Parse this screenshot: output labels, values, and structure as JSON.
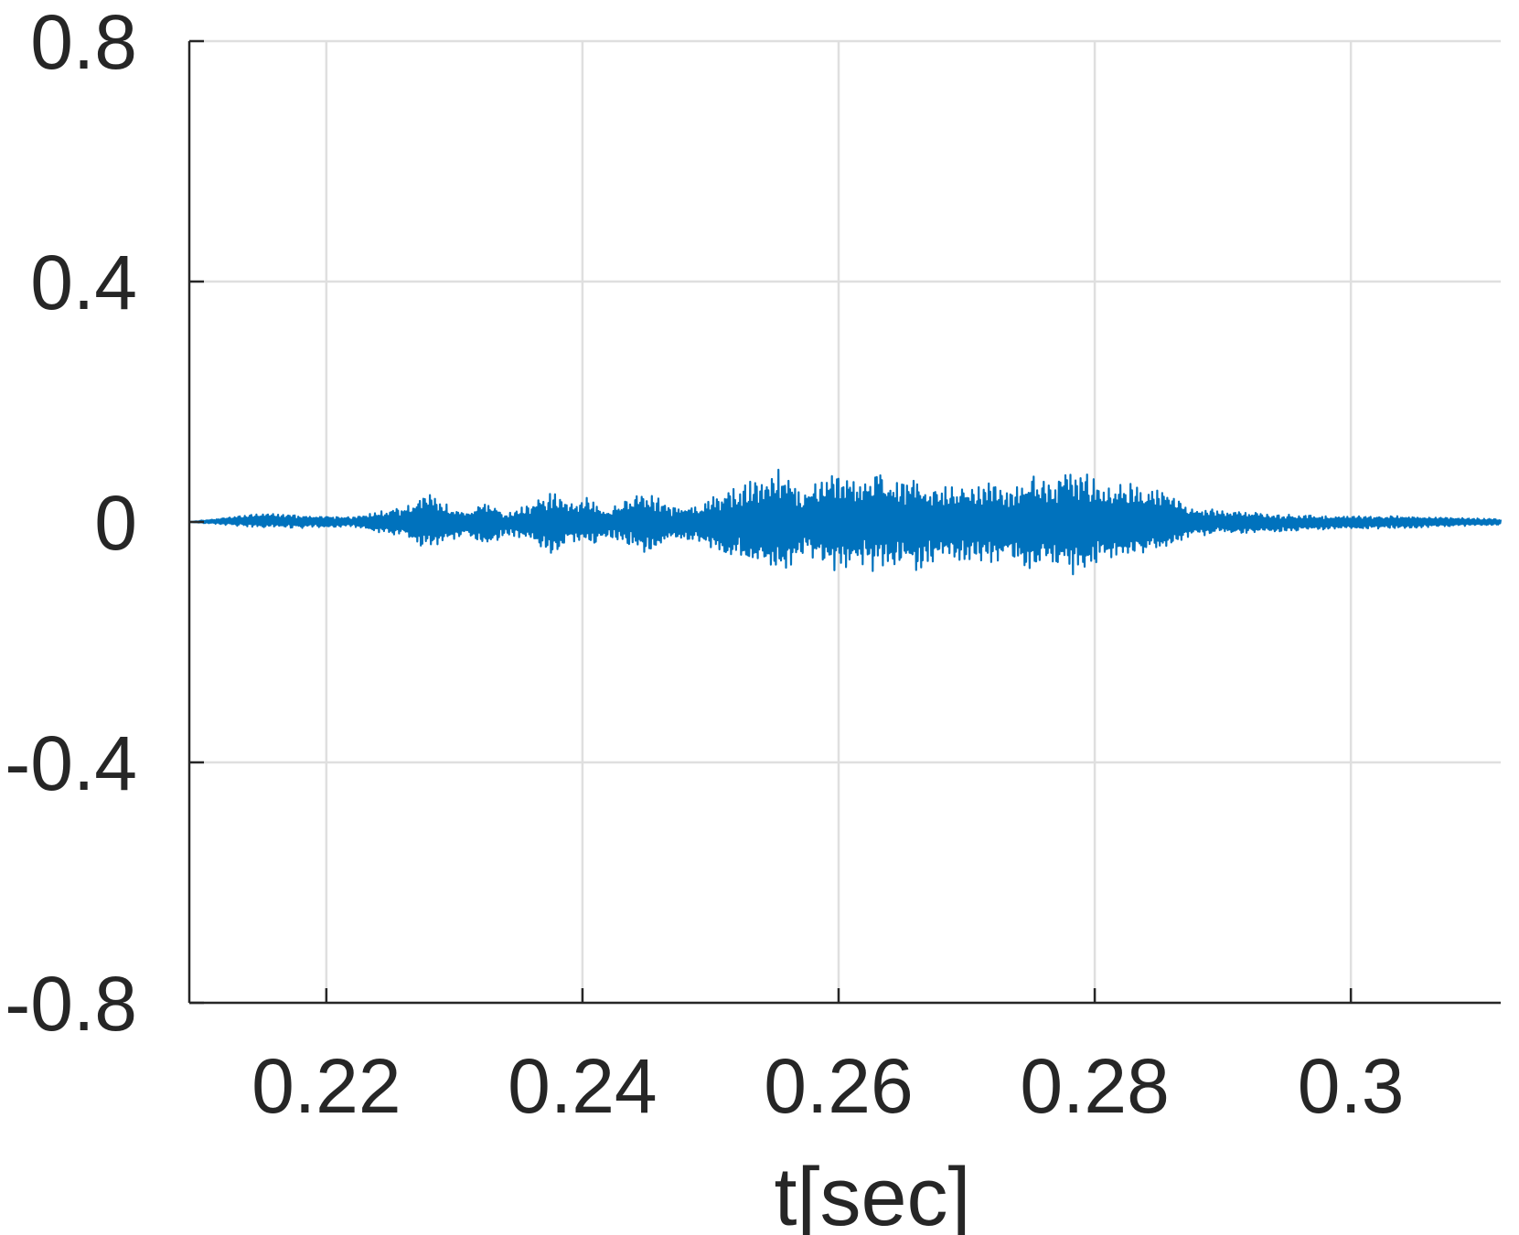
{
  "chart_data": {
    "type": "line",
    "title": "",
    "xlabel": "t[sec]",
    "ylabel": "",
    "xlim": [
      0.2093,
      0.3117
    ],
    "ylim": [
      -0.8,
      0.8
    ],
    "xticks": [
      0.22,
      0.24,
      0.26,
      0.28,
      0.3
    ],
    "xtick_labels": [
      "0.22",
      "0.24",
      "0.26",
      "0.28",
      "0.3"
    ],
    "yticks": [
      -0.8,
      -0.4,
      0,
      0.4,
      0.8
    ],
    "ytick_labels": [
      "-0.8",
      "-0.4",
      "0",
      "0.4",
      "0.8"
    ],
    "grid": true,
    "line_color": "#0072bd",
    "envelope": {
      "t": [
        0.2093,
        0.215,
        0.219,
        0.222,
        0.2255,
        0.2265,
        0.228,
        0.2295,
        0.231,
        0.2325,
        0.234,
        0.236,
        0.2375,
        0.239,
        0.2405,
        0.242,
        0.2435,
        0.245,
        0.247,
        0.249,
        0.251,
        0.2525,
        0.254,
        0.2555,
        0.257,
        0.2585,
        0.26,
        0.2615,
        0.263,
        0.2645,
        0.266,
        0.2675,
        0.269,
        0.2705,
        0.272,
        0.2735,
        0.275,
        0.2765,
        0.278,
        0.2795,
        0.281,
        0.2825,
        0.284,
        0.2855,
        0.2875,
        0.29,
        0.293,
        0.296,
        0.3,
        0.305,
        0.3117
      ],
      "upper": [
        0.0,
        0.015,
        0.01,
        0.008,
        0.025,
        0.03,
        0.05,
        0.03,
        0.015,
        0.04,
        0.015,
        0.03,
        0.055,
        0.03,
        0.045,
        0.02,
        0.04,
        0.055,
        0.025,
        0.03,
        0.055,
        0.06,
        0.08,
        0.095,
        0.05,
        0.07,
        0.085,
        0.07,
        0.09,
        0.065,
        0.085,
        0.06,
        0.065,
        0.06,
        0.07,
        0.055,
        0.085,
        0.065,
        0.09,
        0.085,
        0.06,
        0.065,
        0.06,
        0.055,
        0.025,
        0.02,
        0.015,
        0.012,
        0.01,
        0.01,
        0.005
      ],
      "lower": [
        0.0,
        -0.01,
        -0.01,
        -0.008,
        -0.025,
        -0.03,
        -0.05,
        -0.035,
        -0.02,
        -0.045,
        -0.02,
        -0.035,
        -0.06,
        -0.035,
        -0.045,
        -0.025,
        -0.04,
        -0.055,
        -0.03,
        -0.035,
        -0.06,
        -0.065,
        -0.085,
        -0.09,
        -0.055,
        -0.07,
        -0.09,
        -0.075,
        -0.085,
        -0.07,
        -0.09,
        -0.065,
        -0.07,
        -0.065,
        -0.075,
        -0.06,
        -0.085,
        -0.065,
        -0.095,
        -0.08,
        -0.065,
        -0.06,
        -0.06,
        -0.055,
        -0.025,
        -0.02,
        -0.02,
        -0.015,
        -0.012,
        -0.01,
        -0.005
      ]
    }
  }
}
